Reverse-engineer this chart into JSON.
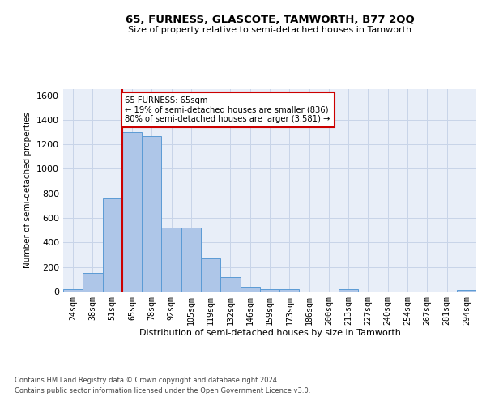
{
  "title": "65, FURNESS, GLASCOTE, TAMWORTH, B77 2QQ",
  "subtitle": "Size of property relative to semi-detached houses in Tamworth",
  "xlabel": "Distribution of semi-detached houses by size in Tamworth",
  "ylabel": "Number of semi-detached properties",
  "footer_line1": "Contains HM Land Registry data © Crown copyright and database right 2024.",
  "footer_line2": "Contains public sector information licensed under the Open Government Licence v3.0.",
  "bar_labels": [
    "24sqm",
    "38sqm",
    "51sqm",
    "65sqm",
    "78sqm",
    "92sqm",
    "105sqm",
    "119sqm",
    "132sqm",
    "146sqm",
    "159sqm",
    "173sqm",
    "186sqm",
    "200sqm",
    "213sqm",
    "227sqm",
    "240sqm",
    "254sqm",
    "267sqm",
    "281sqm",
    "294sqm"
  ],
  "bar_values": [
    20,
    150,
    760,
    1300,
    1270,
    520,
    520,
    270,
    120,
    40,
    20,
    20,
    0,
    0,
    20,
    0,
    0,
    0,
    0,
    0,
    10
  ],
  "bar_color": "#aec6e8",
  "bar_edge_color": "#5b9bd5",
  "vline_index": 3,
  "vline_color": "#cc0000",
  "ylim": [
    0,
    1650
  ],
  "yticks": [
    0,
    200,
    400,
    600,
    800,
    1000,
    1200,
    1400,
    1600
  ],
  "annotation_text": "65 FURNESS: 65sqm\n← 19% of semi-detached houses are smaller (836)\n80% of semi-detached houses are larger (3,581) →",
  "annotation_box_color": "#ffffff",
  "annotation_box_edge": "#cc0000",
  "grid_color": "#c8d4e8",
  "bg_color": "#e8eef8"
}
